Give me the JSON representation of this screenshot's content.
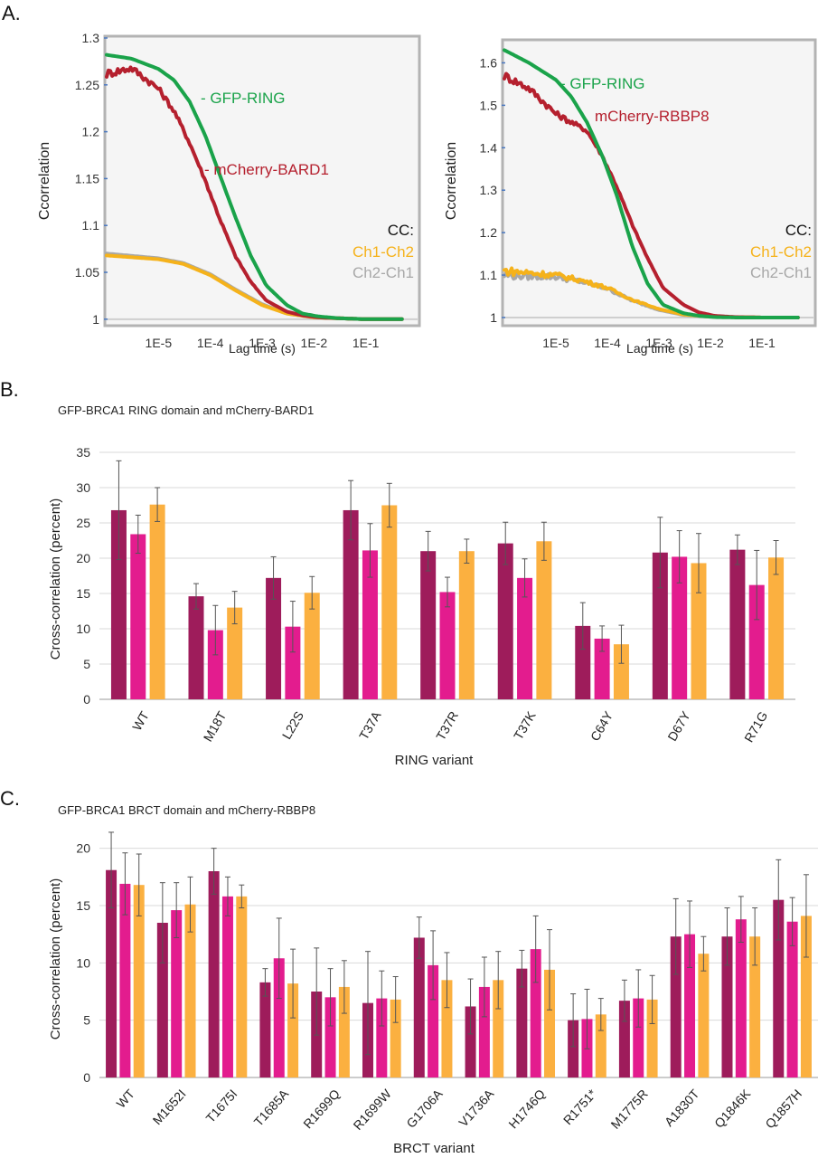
{
  "panels": {
    "a": "A.",
    "b": "B.",
    "c": "C."
  },
  "colors": {
    "gfp": "#1aa34a",
    "mcherry": "#b5202e",
    "ch1ch2": "#f5b21b",
    "ch2ch1": "#a8a8a8",
    "bar_dark": "#9e1c5b",
    "bar_magenta": "#e31c8e",
    "bar_orange": "#fbb040",
    "plot_bg": "#f5f5f5",
    "frame": "#b3b3b3"
  },
  "chart_data": [
    {
      "id": "a-left",
      "type": "line",
      "xscale": "log",
      "xlabel": "Lag time (s)",
      "ylabel": "Ccorrelation",
      "xlim": [
        1e-06,
        1
      ],
      "ylim": [
        0.995,
        1.3
      ],
      "x_ticks": [
        "1E-5",
        "1E-4",
        "1E-3",
        "1E-2",
        "1E-1"
      ],
      "y_ticks": [
        "1",
        "1.05",
        "1.1",
        "1.15",
        "1.2",
        "1.25",
        "1.3"
      ],
      "legend_title": "CC:",
      "series": [
        {
          "name": "- GFP-RING",
          "color_key": "gfp",
          "noisy": false,
          "x": [
            1e-06,
            3e-06,
            1e-05,
            2e-05,
            4e-05,
            8e-05,
            0.00015,
            0.0003,
            0.0006,
            0.0012,
            0.003,
            0.006,
            0.012,
            0.03,
            0.1,
            0.5
          ],
          "y": [
            1.282,
            1.278,
            1.267,
            1.255,
            1.232,
            1.196,
            1.155,
            1.11,
            1.068,
            1.036,
            1.015,
            1.006,
            1.003,
            1.001,
            1.0,
            1.0
          ]
        },
        {
          "name": "- mCherry-BARD1",
          "color_key": "mcherry",
          "noisy": true,
          "x": [
            1e-06,
            3e-06,
            1e-05,
            2e-05,
            4e-05,
            8e-05,
            0.00015,
            0.0003,
            0.0006,
            0.0012,
            0.003,
            0.006,
            0.012,
            0.03,
            0.1,
            0.5
          ],
          "y": [
            1.262,
            1.268,
            1.246,
            1.222,
            1.188,
            1.148,
            1.108,
            1.068,
            1.04,
            1.02,
            1.008,
            1.004,
            1.002,
            1.001,
            1.0,
            1.0
          ]
        },
        {
          "name": "Ch2-Ch1",
          "color_key": "ch2ch1",
          "noisy": false,
          "x": [
            1e-06,
            1e-05,
            3e-05,
            0.0001,
            0.0003,
            0.001,
            0.003,
            0.01,
            0.03,
            0.1,
            0.5
          ],
          "y": [
            1.07,
            1.065,
            1.06,
            1.048,
            1.032,
            1.016,
            1.006,
            1.002,
            1.001,
            1.0,
            1.0
          ]
        },
        {
          "name": "Ch1-Ch2",
          "color_key": "ch1ch2",
          "noisy": false,
          "x": [
            1e-06,
            1e-05,
            3e-05,
            0.0001,
            0.0003,
            0.001,
            0.003,
            0.01,
            0.03,
            0.1,
            0.5
          ],
          "y": [
            1.068,
            1.064,
            1.059,
            1.047,
            1.031,
            1.015,
            1.006,
            1.002,
            1.001,
            1.0,
            1.0
          ]
        }
      ]
    },
    {
      "id": "a-right",
      "type": "line",
      "xscale": "log",
      "xlabel": "Lag time (s)",
      "ylabel": "Ccorrelation",
      "xlim": [
        1e-06,
        1
      ],
      "ylim": [
        0.985,
        1.65
      ],
      "x_ticks": [
        "1E-5",
        "1E-4",
        "1E-3",
        "1E-2",
        "1E-1"
      ],
      "y_ticks": [
        "1",
        "1.1",
        "1.2",
        "1.3",
        "1.4",
        "1.5",
        "1.6"
      ],
      "legend_title": "CC:",
      "series": [
        {
          "name": "- GFP-RING",
          "color_key": "gfp",
          "noisy": false,
          "x": [
            1e-06,
            3e-06,
            1e-05,
            2e-05,
            4e-05,
            8e-05,
            0.00015,
            0.0003,
            0.0006,
            0.0012,
            0.003,
            0.006,
            0.012,
            0.03,
            0.1,
            0.5
          ],
          "y": [
            1.63,
            1.6,
            1.56,
            1.52,
            1.46,
            1.38,
            1.29,
            1.17,
            1.08,
            1.03,
            1.01,
            1.004,
            1.001,
            1.0,
            1.0,
            1.0
          ]
        },
        {
          "name": "mCherry-RBBP8",
          "color_key": "mcherry",
          "noisy": true,
          "x": [
            1e-06,
            3e-06,
            1e-05,
            2e-05,
            4e-05,
            8e-05,
            0.00015,
            0.0003,
            0.0006,
            0.0012,
            0.003,
            0.006,
            0.012,
            0.03,
            0.1,
            0.5
          ],
          "y": [
            1.57,
            1.54,
            1.48,
            1.46,
            1.44,
            1.38,
            1.31,
            1.22,
            1.14,
            1.07,
            1.03,
            1.012,
            1.004,
            1.001,
            1.0,
            1.0
          ]
        },
        {
          "name": "Ch2-Ch1",
          "color_key": "ch2ch1",
          "noisy": true,
          "x": [
            1e-06,
            1e-05,
            3e-05,
            0.0001,
            0.0003,
            0.001,
            0.003,
            0.01,
            0.03,
            0.1,
            0.5
          ],
          "y": [
            1.1,
            1.096,
            1.085,
            1.068,
            1.04,
            1.018,
            1.006,
            1.002,
            1.001,
            1.0,
            1.0
          ]
        },
        {
          "name": "Ch1-Ch2",
          "color_key": "ch1ch2",
          "noisy": true,
          "x": [
            1e-06,
            1e-05,
            3e-05,
            0.0001,
            0.0003,
            0.001,
            0.003,
            0.01,
            0.03,
            0.1,
            0.5
          ],
          "y": [
            1.11,
            1.1,
            1.088,
            1.07,
            1.042,
            1.02,
            1.007,
            1.002,
            1.001,
            1.0,
            1.0
          ]
        }
      ]
    },
    {
      "id": "b",
      "type": "bar",
      "title": "GFP-BRCA1 RING domain and mCherry-BARD1",
      "xlabel": "RING variant",
      "ylabel": "Cross-correlation (percent)",
      "ylim": [
        0,
        35
      ],
      "y_ticks": [
        0,
        5,
        10,
        15,
        20,
        25,
        30,
        35
      ],
      "categories": [
        "WT",
        "M18T",
        "L22S",
        "T37A",
        "T37R",
        "T37K",
        "C64Y",
        "D67Y",
        "R71G"
      ],
      "series": [
        {
          "color_key": "bar_dark",
          "values": [
            26.8,
            14.6,
            17.2,
            26.8,
            21.0,
            22.1,
            10.4,
            20.8,
            21.2
          ],
          "errors": [
            7.0,
            1.8,
            3.0,
            4.2,
            2.8,
            3.0,
            3.3,
            5.0,
            2.1
          ]
        },
        {
          "color_key": "bar_magenta",
          "values": [
            23.4,
            9.8,
            10.3,
            21.1,
            15.2,
            17.2,
            8.6,
            20.2,
            16.2
          ],
          "errors": [
            2.7,
            3.5,
            3.6,
            3.8,
            2.1,
            2.7,
            1.8,
            3.7,
            4.9
          ]
        },
        {
          "color_key": "bar_orange",
          "values": [
            27.6,
            13.0,
            15.1,
            27.5,
            21.0,
            22.4,
            7.8,
            19.3,
            20.1
          ],
          "errors": [
            2.4,
            2.3,
            2.3,
            3.1,
            1.7,
            2.7,
            2.7,
            4.2,
            2.4
          ]
        }
      ]
    },
    {
      "id": "c",
      "type": "bar",
      "title": "GFP-BRCA1 BRCT domain and mCherry-RBBP8",
      "xlabel": "BRCT variant",
      "ylabel": "Cross-correlation (percent)",
      "ylim": [
        0,
        21
      ],
      "y_ticks": [
        0,
        5,
        10,
        15,
        20
      ],
      "categories": [
        "WT",
        "M1652I",
        "T1675I",
        "T1685A",
        "R1699Q",
        "R1699W",
        "G1706A",
        "V1736A",
        "H1746Q",
        "R1751*",
        "M1775R",
        "A1830T",
        "Q1846K",
        "Q1857H"
      ],
      "series": [
        {
          "color_key": "bar_dark",
          "values": [
            18.1,
            13.5,
            18.0,
            8.3,
            7.5,
            6.5,
            12.2,
            6.2,
            9.5,
            5.0,
            6.7,
            12.3,
            12.3,
            15.5
          ],
          "errors": [
            3.3,
            3.5,
            2.0,
            1.2,
            3.8,
            4.5,
            1.8,
            2.4,
            1.6,
            2.3,
            1.8,
            3.3,
            2.5,
            3.5
          ]
        },
        {
          "color_key": "bar_magenta",
          "values": [
            16.9,
            14.6,
            15.8,
            10.4,
            7.0,
            6.9,
            9.8,
            7.9,
            11.2,
            5.1,
            6.9,
            12.5,
            13.8,
            13.6
          ],
          "errors": [
            2.7,
            2.4,
            1.7,
            3.5,
            2.5,
            2.4,
            3.0,
            2.6,
            2.9,
            2.6,
            2.5,
            2.9,
            2.0,
            2.1
          ]
        },
        {
          "color_key": "bar_orange",
          "values": [
            16.8,
            15.1,
            15.8,
            8.2,
            7.9,
            6.8,
            8.5,
            8.5,
            9.4,
            5.5,
            6.8,
            10.8,
            12.3,
            14.1
          ],
          "errors": [
            2.7,
            2.4,
            1.0,
            3.0,
            2.3,
            2.0,
            2.4,
            2.5,
            3.5,
            1.4,
            2.1,
            1.5,
            2.5,
            3.6
          ]
        }
      ]
    }
  ]
}
